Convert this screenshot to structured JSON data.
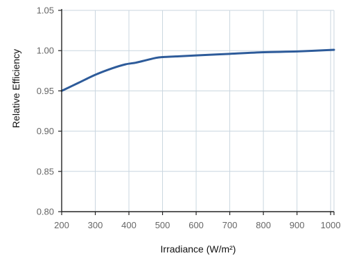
{
  "chart_data": {
    "type": "line",
    "title": "",
    "xlabel": "Irradiance (W/m²)",
    "ylabel": "Relative Efficiency",
    "xlim": [
      200,
      1010
    ],
    "ylim": [
      0.8,
      1.05
    ],
    "x_ticks": [
      200,
      300,
      400,
      500,
      600,
      700,
      800,
      900,
      1000
    ],
    "y_ticks": [
      "0.80",
      "0.85",
      "0.90",
      "0.95",
      "1.00",
      "1.05"
    ],
    "grid": true,
    "series": [
      {
        "color": "#2d5b9a",
        "x": [
          200,
          250,
          300,
          350,
          390,
          420,
          450,
          480,
          500,
          550,
          600,
          700,
          800,
          900,
          1010
        ],
        "y": [
          0.95,
          0.96,
          0.97,
          0.978,
          0.983,
          0.985,
          0.988,
          0.991,
          0.992,
          0.993,
          0.994,
          0.996,
          0.998,
          0.999,
          1.001
        ]
      }
    ]
  }
}
